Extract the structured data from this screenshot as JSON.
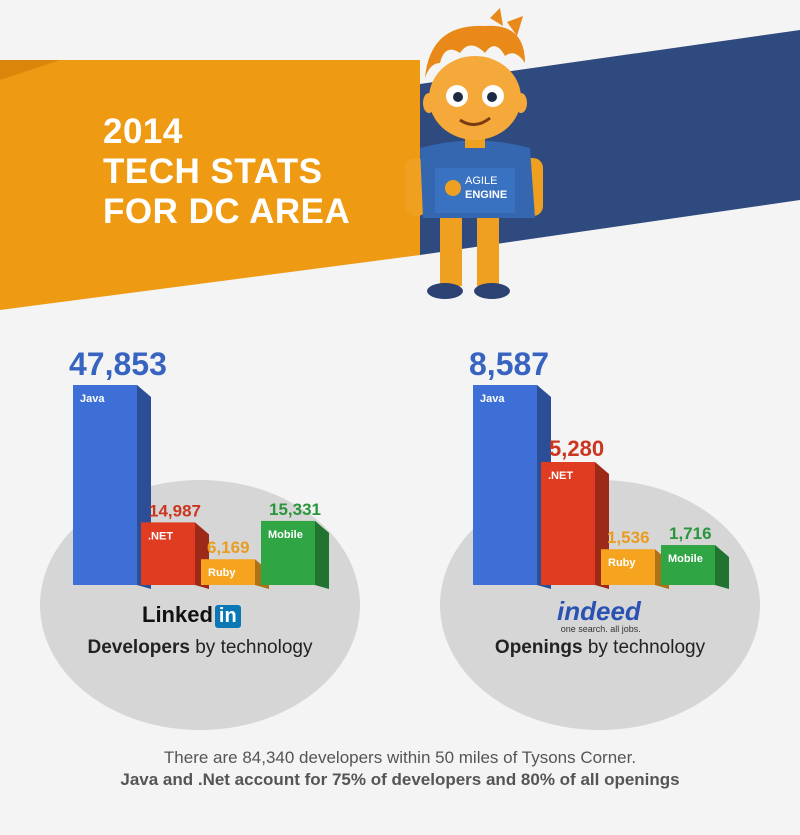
{
  "header": {
    "title_line1": "2014",
    "title_line2": "TECH STATS",
    "title_line3": "FOR DC AREA",
    "mascot_shirt_line1": "AGILE",
    "mascot_shirt_line2": "ENGINE"
  },
  "colors": {
    "orange": "#ef9a13",
    "navy": "#2f4a7e",
    "java": "#3e6fd6",
    "net": "#e03c22",
    "ruby": "#f6a420",
    "mobile": "#2fa544",
    "circle": "#d6d6d6"
  },
  "chart_data": [
    {
      "type": "bar",
      "categories": [
        "Java",
        ".NET",
        "Ruby",
        "Mobile"
      ],
      "values": [
        47853,
        14987,
        6169,
        15331
      ],
      "value_labels": [
        "47,853",
        "14,987",
        "6,169",
        "15,331"
      ],
      "caption_bold": "Developers",
      "caption_rest": " by technology",
      "logo_text": "Linked",
      "logo_box": "in"
    },
    {
      "type": "bar",
      "categories": [
        "Java",
        ".NET",
        "Ruby",
        "Mobile"
      ],
      "values": [
        8587,
        5280,
        1536,
        1716
      ],
      "value_labels": [
        "8,587",
        "5,280",
        "1,536",
        "1,716"
      ],
      "caption_bold": "Openings",
      "caption_rest": " by technology",
      "logo_text": "indeed",
      "logo_tagline": "one search. all jobs."
    }
  ],
  "footer": {
    "line1": "There are 84,340 developers within 50 miles of Tysons Corner.",
    "line2": "Java and .Net account for 75% of developers and 80% of all openings"
  }
}
